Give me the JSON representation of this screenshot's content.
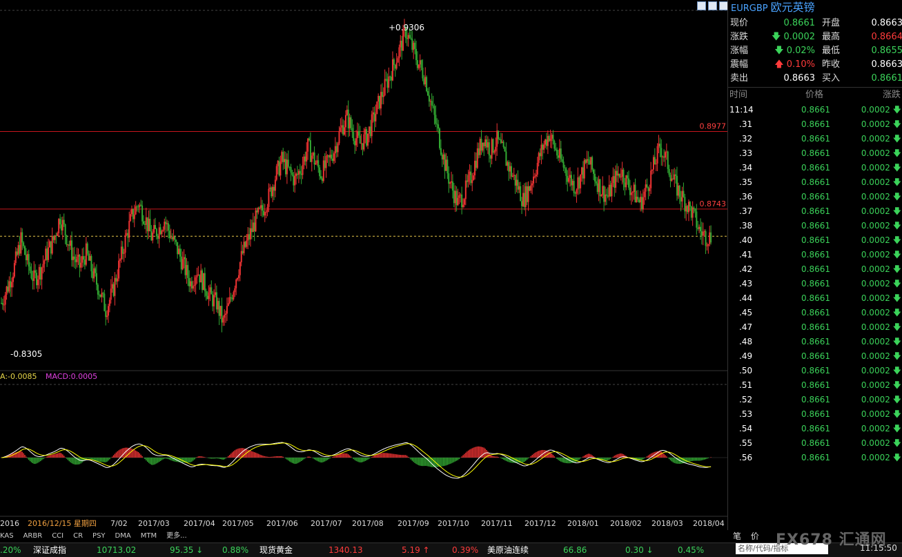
{
  "symbol": {
    "code": "EURGBP",
    "name": "欧元英镑"
  },
  "quote": {
    "rows": [
      {
        "l1": "现价",
        "v1": "0.8661",
        "c1": "g",
        "l2": "开盘",
        "v2": "0.8663",
        "c2": "w"
      },
      {
        "l1": "涨跌",
        "v1": "0.0002",
        "c1": "g",
        "a1": "down",
        "l2": "最高",
        "v2": "0.8664",
        "c2": "r"
      },
      {
        "l1": "涨幅",
        "v1": "0.02%",
        "c1": "g",
        "a1": "down",
        "l2": "最低",
        "v2": "0.8655",
        "c2": "g"
      },
      {
        "l1": "震幅",
        "v1": "0.10%",
        "c1": "r",
        "a1": "up",
        "l2": "昨收",
        "v2": "0.8663",
        "c2": "w"
      },
      {
        "l1": "卖出",
        "v1": "0.8663",
        "c1": "w",
        "l2": "买入",
        "v2": "0.8661",
        "c2": "g"
      }
    ]
  },
  "ticks": {
    "headers": [
      "时间",
      "价格",
      "涨跌"
    ],
    "rows": [
      {
        "t": "11:14",
        "p": "0.8661",
        "d": "0.0002"
      },
      {
        "t": ".31",
        "p": "0.8661",
        "d": "0.0002"
      },
      {
        "t": ".32",
        "p": "0.8661",
        "d": "0.0002"
      },
      {
        "t": ".33",
        "p": "0.8661",
        "d": "0.0002"
      },
      {
        "t": ".34",
        "p": "0.8661",
        "d": "0.0002"
      },
      {
        "t": ".35",
        "p": "0.8661",
        "d": "0.0002"
      },
      {
        "t": ".36",
        "p": "0.8661",
        "d": "0.0002"
      },
      {
        "t": ".37",
        "p": "0.8661",
        "d": "0.0002"
      },
      {
        "t": ".38",
        "p": "0.8661",
        "d": "0.0002"
      },
      {
        "t": ".40",
        "p": "0.8661",
        "d": "0.0002"
      },
      {
        "t": ".41",
        "p": "0.8661",
        "d": "0.0002"
      },
      {
        "t": ".42",
        "p": "0.8661",
        "d": "0.0002"
      },
      {
        "t": ".43",
        "p": "0.8661",
        "d": "0.0002"
      },
      {
        "t": ".44",
        "p": "0.8661",
        "d": "0.0002"
      },
      {
        "t": ".45",
        "p": "0.8661",
        "d": "0.0002"
      },
      {
        "t": ".47",
        "p": "0.8661",
        "d": "0.0002"
      },
      {
        "t": ".48",
        "p": "0.8661",
        "d": "0.0002"
      },
      {
        "t": ".49",
        "p": "0.8661",
        "d": "0.0002"
      },
      {
        "t": ".50",
        "p": "0.8661",
        "d": "0.0002"
      },
      {
        "t": ".51",
        "p": "0.8661",
        "d": "0.0002"
      },
      {
        "t": ".52",
        "p": "0.8661",
        "d": "0.0002"
      },
      {
        "t": ".53",
        "p": "0.8661",
        "d": "0.0002"
      },
      {
        "t": ".54",
        "p": "0.8661",
        "d": "0.0002"
      },
      {
        "t": ".55",
        "p": "0.8661",
        "d": "0.0002"
      },
      {
        "t": ".56",
        "p": "0.8661",
        "d": "0.0002"
      }
    ]
  },
  "chart_data": {
    "type": "candlestick",
    "price_range": [
      0.826,
      0.934
    ],
    "high_label": "0.9306",
    "low_label": "0.8305",
    "hlines": [
      {
        "value": 0.8977,
        "label": "0.8977"
      },
      {
        "value": 0.8743,
        "label": "0.8743"
      }
    ],
    "current_line": 0.8661,
    "macd_labels": {
      "dea": "A:-0.0085",
      "macd": "MACD:0.0005"
    },
    "x_labels": [
      "2016",
      "2016/12/15 星期四",
      "7/02",
      "2017/03",
      "2017/04",
      "2017/05",
      "2017/06",
      "2017/07",
      "2017/08",
      "2017/09",
      "2017/10",
      "2017/11",
      "2017/12",
      "2018/01",
      "2018/02",
      "2018/03",
      "2018/04"
    ],
    "closes": [
      0.846,
      0.851,
      0.857,
      0.865,
      0.858,
      0.853,
      0.856,
      0.861,
      0.865,
      0.872,
      0.866,
      0.86,
      0.857,
      0.861,
      0.855,
      0.85,
      0.844,
      0.849,
      0.857,
      0.865,
      0.872,
      0.876,
      0.872,
      0.866,
      0.868,
      0.871,
      0.866,
      0.862,
      0.857,
      0.852,
      0.856,
      0.852,
      0.848,
      0.846,
      0.84,
      0.846,
      0.854,
      0.861,
      0.866,
      0.871,
      0.874,
      0.878,
      0.884,
      0.889,
      0.886,
      0.883,
      0.887,
      0.893,
      0.889,
      0.885,
      0.888,
      0.892,
      0.898,
      0.902,
      0.897,
      0.894,
      0.896,
      0.901,
      0.907,
      0.912,
      0.917,
      0.922,
      0.928,
      0.923,
      0.918,
      0.914,
      0.905,
      0.897,
      0.888,
      0.881,
      0.876,
      0.879,
      0.884,
      0.891,
      0.896,
      0.892,
      0.895,
      0.891,
      0.886,
      0.882,
      0.877,
      0.881,
      0.887,
      0.893,
      0.897,
      0.892,
      0.888,
      0.884,
      0.881,
      0.885,
      0.889,
      0.884,
      0.88,
      0.878,
      0.883,
      0.886,
      0.882,
      0.879,
      0.876,
      0.881,
      0.887,
      0.893,
      0.889,
      0.883,
      0.879,
      0.876,
      0.873,
      0.868,
      0.866
    ]
  },
  "bottom": {
    "tabs": [
      "KAS",
      "ARBR",
      "CCI",
      "CR",
      "PSY",
      "DMA",
      "MTM",
      "更多..."
    ],
    "ticker": [
      {
        "text": ".20%",
        "c": "g",
        "x": 0
      },
      {
        "text": "深证成指",
        "c": "w",
        "x": 48
      },
      {
        "text": "10713.02",
        "c": "g",
        "x": 140
      },
      {
        "text": "95.35",
        "c": "g",
        "x": 246,
        "arrow": "down"
      },
      {
        "text": "0.88%",
        "c": "g",
        "x": 322
      },
      {
        "text": "现货黄金",
        "c": "w",
        "x": 376
      },
      {
        "text": "1340.13",
        "c": "r",
        "x": 476
      },
      {
        "text": "5.19",
        "c": "r",
        "x": 582,
        "arrow": "up"
      },
      {
        "text": "0.39%",
        "c": "r",
        "x": 655
      },
      {
        "text": "美原油连续",
        "c": "w",
        "x": 706
      },
      {
        "text": "66.86",
        "c": "g",
        "x": 816
      },
      {
        "text": "0.30",
        "c": "g",
        "x": 906,
        "arrow": "down"
      },
      {
        "text": "0.45%",
        "c": "g",
        "x": 982
      }
    ],
    "search_placeholder": "名称/代码/指标",
    "logo": "FX678 汇通网",
    "clock": "11:15:50",
    "side_tabs": [
      "笔",
      "价"
    ]
  }
}
